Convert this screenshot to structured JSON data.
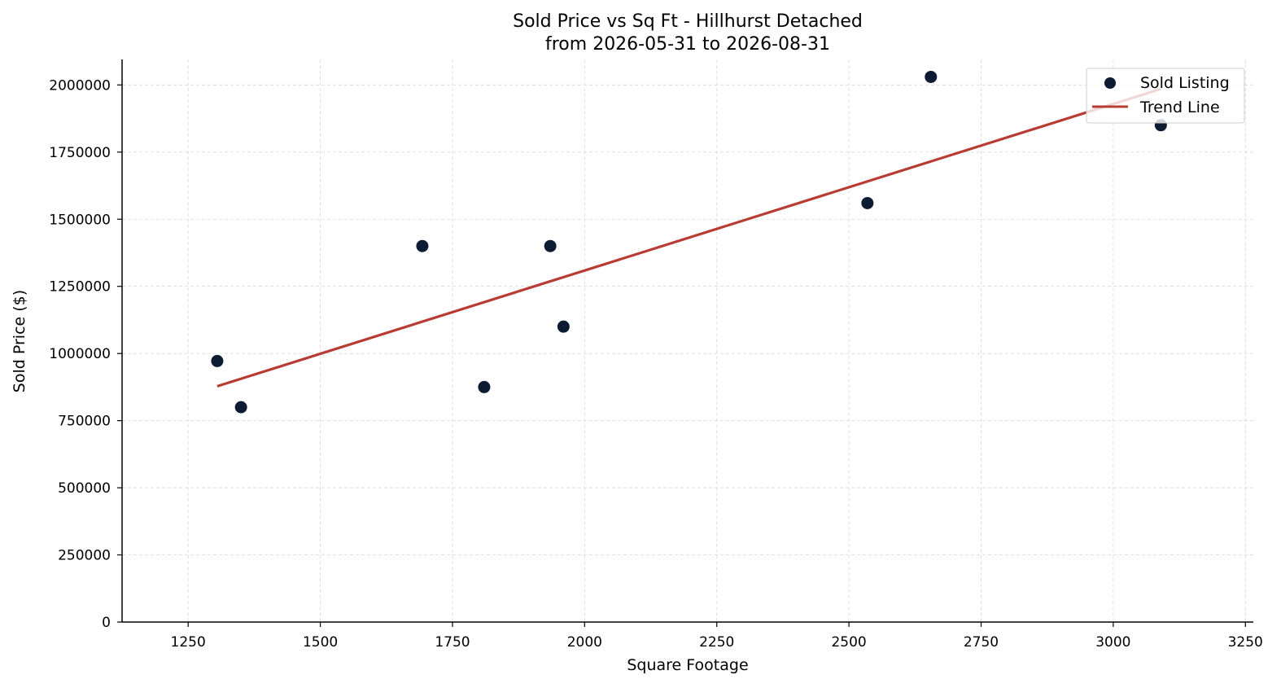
{
  "chart_data": {
    "type": "scatter",
    "title": "Sold Price vs Sq Ft - Hillhurst Detached",
    "subtitle": "from 2026-05-31 to 2026-08-31",
    "xlabel": "Square Footage",
    "ylabel": "Sold Price ($)",
    "xlim": [
      1125,
      3265
    ],
    "ylim": [
      0,
      2095000
    ],
    "xticks": [
      1250,
      1500,
      1750,
      2000,
      2250,
      2500,
      2750,
      3000,
      3250
    ],
    "xtick_labels": [
      "1250",
      "1500",
      "1750",
      "2000",
      "2250",
      "2500",
      "2750",
      "3000",
      "3250"
    ],
    "yticks": [
      0,
      250000,
      500000,
      750000,
      1000000,
      1250000,
      1500000,
      1750000,
      2000000
    ],
    "ytick_labels": [
      "0",
      "250000",
      "500000",
      "750000",
      "1000000",
      "1250000",
      "1500000",
      "1750000",
      "2000000"
    ],
    "grid": true,
    "legend_position": "top-right",
    "series": [
      {
        "name": "Sold Listing",
        "kind": "scatter",
        "color": "#0d1b33",
        "points": [
          {
            "x": 1305,
            "y": 972000
          },
          {
            "x": 1350,
            "y": 800000
          },
          {
            "x": 1693,
            "y": 1400000
          },
          {
            "x": 1810,
            "y": 875000
          },
          {
            "x": 1935,
            "y": 1400000
          },
          {
            "x": 1960,
            "y": 1100000
          },
          {
            "x": 2535,
            "y": 1560000
          },
          {
            "x": 2655,
            "y": 2030000
          },
          {
            "x": 3090,
            "y": 1850000
          }
        ]
      },
      {
        "name": "Trend Line",
        "kind": "line",
        "color": "#b83c33",
        "points": [
          {
            "x": 1305,
            "y": 878000
          },
          {
            "x": 3090,
            "y": 1985000
          }
        ]
      }
    ]
  }
}
